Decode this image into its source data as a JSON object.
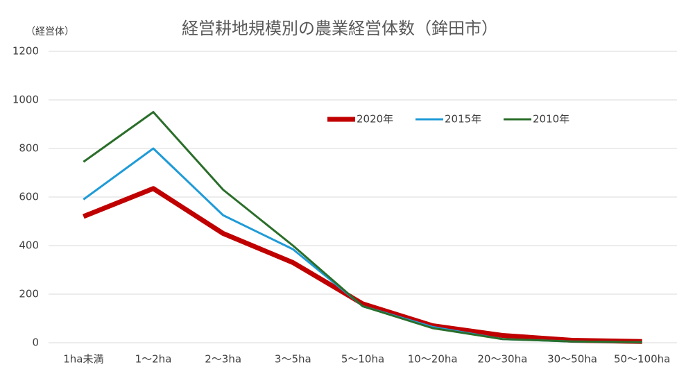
{
  "chart_data": {
    "type": "line",
    "title": "経営耕地規模別の農業経営体数（鉾田市）",
    "y_label": "（経営体）",
    "categories": [
      "1ha未満",
      "1～2ha",
      "2～3ha",
      "3～5ha",
      "5～10ha",
      "10～20ha",
      "20～30ha",
      "30～50ha",
      "50～100ha"
    ],
    "series": [
      {
        "name": "2020年",
        "color": "#c00000",
        "values": [
          520,
          635,
          450,
          330,
          160,
          70,
          30,
          10,
          5
        ]
      },
      {
        "name": "2015年",
        "color": "#1f9bd7",
        "values": [
          590,
          800,
          525,
          385,
          150,
          65,
          15,
          5,
          2
        ]
      },
      {
        "name": "2010年",
        "color": "#2a6e2a",
        "values": [
          745,
          950,
          630,
          400,
          150,
          60,
          15,
          5,
          2
        ]
      }
    ],
    "ylim": [
      0,
      1200
    ],
    "yticks": [
      0,
      200,
      400,
      600,
      800,
      1000,
      1200
    ],
    "grid": true
  }
}
